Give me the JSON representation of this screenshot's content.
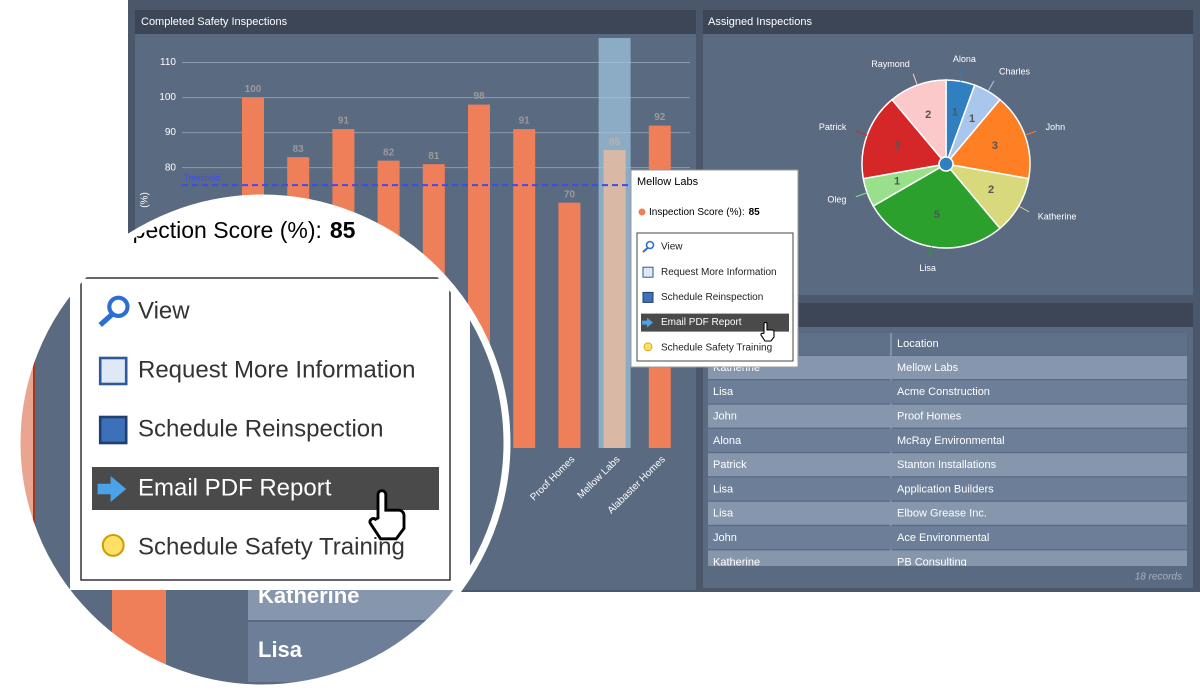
{
  "chart_data": [
    {
      "type": "bar",
      "title": "Completed Safety Inspections",
      "ylabel": "(%)",
      "categories": [
        null,
        null,
        null,
        null,
        null,
        null,
        null,
        "Proof Homes",
        "Mellow Labs",
        "Alabaster Homes"
      ],
      "series": [
        {
          "name": "Inspection Score (%)",
          "color": "#ef7f58",
          "values": [
            100,
            83,
            91,
            82,
            81,
            98,
            91,
            70,
            85,
            92
          ]
        }
      ],
      "ylim": [
        0,
        115
      ],
      "yticks": [
        80,
        90,
        100,
        110
      ],
      "grid": true,
      "annotations": [
        {
          "text": "Threshold",
          "value": 75
        }
      ]
    },
    {
      "type": "pie",
      "title": "Assigned Inspections",
      "labels": [
        "Alona",
        "Charles",
        "John",
        "Katherine",
        "Lisa",
        "Oleg",
        "Patrick",
        "Raymond"
      ],
      "values": [
        1,
        1,
        3,
        2,
        5,
        1,
        3,
        2
      ],
      "colors": [
        "#2f7fc1",
        "#a9c7ec",
        "#ff7f24",
        "#d7d97c",
        "#2ca02c",
        "#98e08a",
        "#d62728",
        "#fcc9cb"
      ]
    }
  ],
  "tooltip": {
    "label": "Inspection Score (%):",
    "menu": [
      "View",
      "Request More Information",
      "Schedule Reinspection",
      "Email PDF Report",
      "Schedule Safety Training"
    ]
  },
  "table": {
    "columns": [
      "Location"
    ],
    "rows": [
      [
        "Katherine",
        "Mellow Labs"
      ],
      [
        "Lisa",
        "Acme Construction"
      ],
      [
        "John",
        "Proof Homes"
      ],
      [
        "Alona",
        "McRay Environmental"
      ],
      [
        "Patrick",
        "Stanton Installations"
      ],
      [
        "Lisa",
        "Application Builders"
      ],
      [
        "Lisa",
        "Elbow Grease Inc."
      ],
      [
        "John",
        "Ace Environmental"
      ],
      [
        "Katherine",
        "PB Consulting"
      ]
    ],
    "footer": "18 records"
  }
}
